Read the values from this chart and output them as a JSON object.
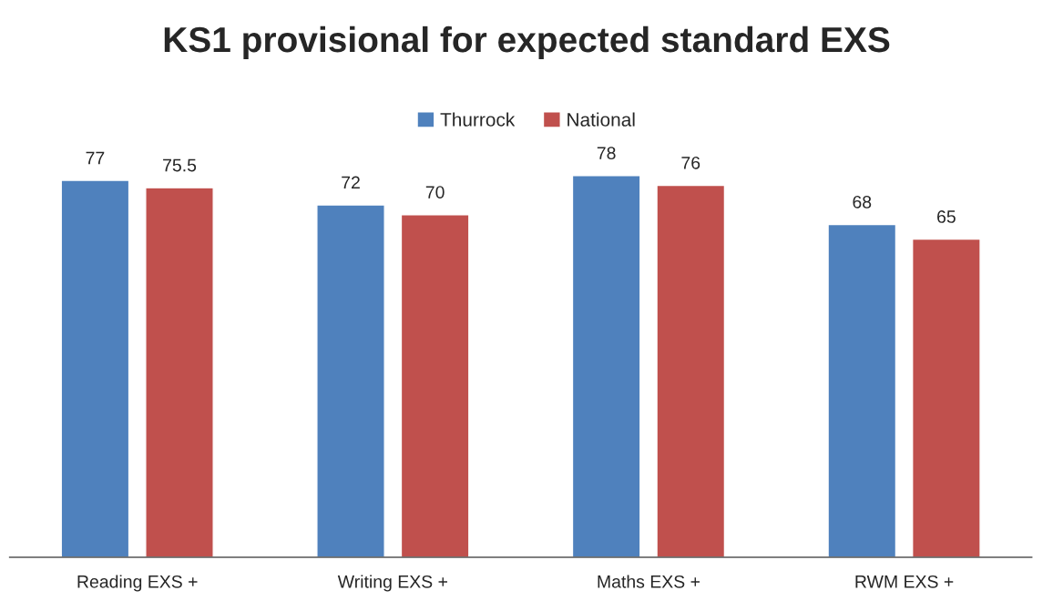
{
  "chart_data": {
    "type": "bar",
    "title": "KS1 provisional for expected standard EXS",
    "categories": [
      "Reading EXS +",
      "Writing EXS +",
      "Maths EXS +",
      "RWM EXS +"
    ],
    "series": [
      {
        "name": "Thurrock",
        "color": "#4f81bd",
        "values": [
          77,
          72,
          78,
          68
        ]
      },
      {
        "name": "National",
        "color": "#c0504d",
        "values": [
          75.5,
          70,
          76,
          65
        ]
      }
    ],
    "tick_labels": "x",
    "data_labels": true,
    "legend": "top",
    "grid": false
  }
}
